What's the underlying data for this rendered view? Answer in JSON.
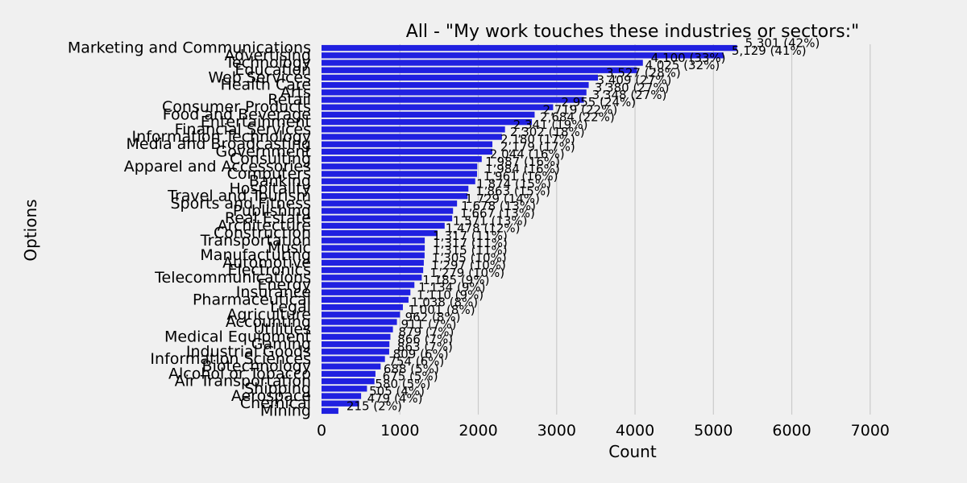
{
  "colors": {
    "bar": "#2020e0",
    "background": "#f0f0f0",
    "grid": "#cbcbcb",
    "text": "#000000"
  },
  "chart_data": {
    "type": "bar",
    "orientation": "horizontal",
    "title": "All - \"My work touches these industries or sectors:\"",
    "xlabel": "Count",
    "ylabel": "Options",
    "xlim": [
      0,
      7300
    ],
    "xticks": [
      0,
      1000,
      2000,
      3000,
      4000,
      5000,
      6000,
      7000
    ],
    "grid": "vertical",
    "legend": "none",
    "categories": [
      "Marketing and Communications",
      "Advertising",
      "Technology",
      "Education",
      "Web Services",
      "Health Care",
      "Arts",
      "Retail",
      "Consumer Products",
      "Food and Beverage",
      "Entertainment",
      "Financial Services",
      "Information Technology",
      "Media and Broadcasting",
      "Government",
      "Consulting",
      "Apparel and Accessories",
      "Computers",
      "Banking",
      "Hospitality",
      "Travel and Tourism",
      "Sports and Fitness",
      "Publishing",
      "Real Estate",
      "Architecture",
      "Construction",
      "Transportation",
      "Music",
      "Manufacturing",
      "Automotive",
      "Electronics",
      "Telecommunications",
      "Energy",
      "Insurance",
      "Pharmaceutical",
      "Legal",
      "Agriculture",
      "Accounting",
      "Utilities",
      "Medical Equipment",
      "Gaming",
      "Industrial Goods",
      "Information Sciences",
      "Biotechnology",
      "Alcohol or Tobacco",
      "Air Transportation",
      "Shipping",
      "Aerospace",
      "Chemical",
      "Mining"
    ],
    "values": [
      5301,
      5129,
      4100,
      4025,
      3527,
      3409,
      3380,
      3348,
      2955,
      2719,
      2684,
      2341,
      2302,
      2180,
      2179,
      2044,
      1987,
      1984,
      1961,
      1874,
      1863,
      1729,
      1678,
      1667,
      1571,
      1478,
      1317,
      1317,
      1315,
      1305,
      1297,
      1279,
      1185,
      1134,
      1110,
      1038,
      1001,
      962,
      911,
      879,
      866,
      863,
      809,
      754,
      688,
      675,
      580,
      505,
      479,
      215
    ],
    "labels": [
      "5,301 (42%)",
      "5,129 (41%)",
      "4,100 (33%)",
      "4,025 (32%)",
      "3,527 (28%)",
      "3,409 (27%)",
      "3,380 (27%)",
      "3,348 (27%)",
      "2,955 (24%)",
      "2,719 (22%)",
      "2,684 (22%)",
      "2,341 (19%)",
      "2,302 (18%)",
      "2,180 (17%)",
      "2,179 (17%)",
      "2,044 (16%)",
      "1,987 (16%)",
      "1,984 (16%)",
      "1,961 (16%)",
      "1,874 (15%)",
      "1,863 (15%)",
      "1,729 (14%)",
      "1,678 (13%)",
      "1,667 (13%)",
      "1,571 (13%)",
      "1,478 (12%)",
      "1,317 (11%)",
      "1,317 (11%)",
      "1,315 (11%)",
      "1,305 (10%)",
      "1,297 (10%)",
      "1,279 (10%)",
      "1,185 (9%)",
      "1,134 (9%)",
      "1,110 (9%)",
      "1,038 (8%)",
      "1,001 (8%)",
      "962 (8%)",
      "911 (7%)",
      "879 (7%)",
      "866 (7%)",
      "863 (7%)",
      "809 (6%)",
      "754 (6%)",
      "688 (5%)",
      "675 (5%)",
      "580 (5%)",
      "505 (4%)",
      "479 (4%)",
      "215 (2%)"
    ]
  }
}
